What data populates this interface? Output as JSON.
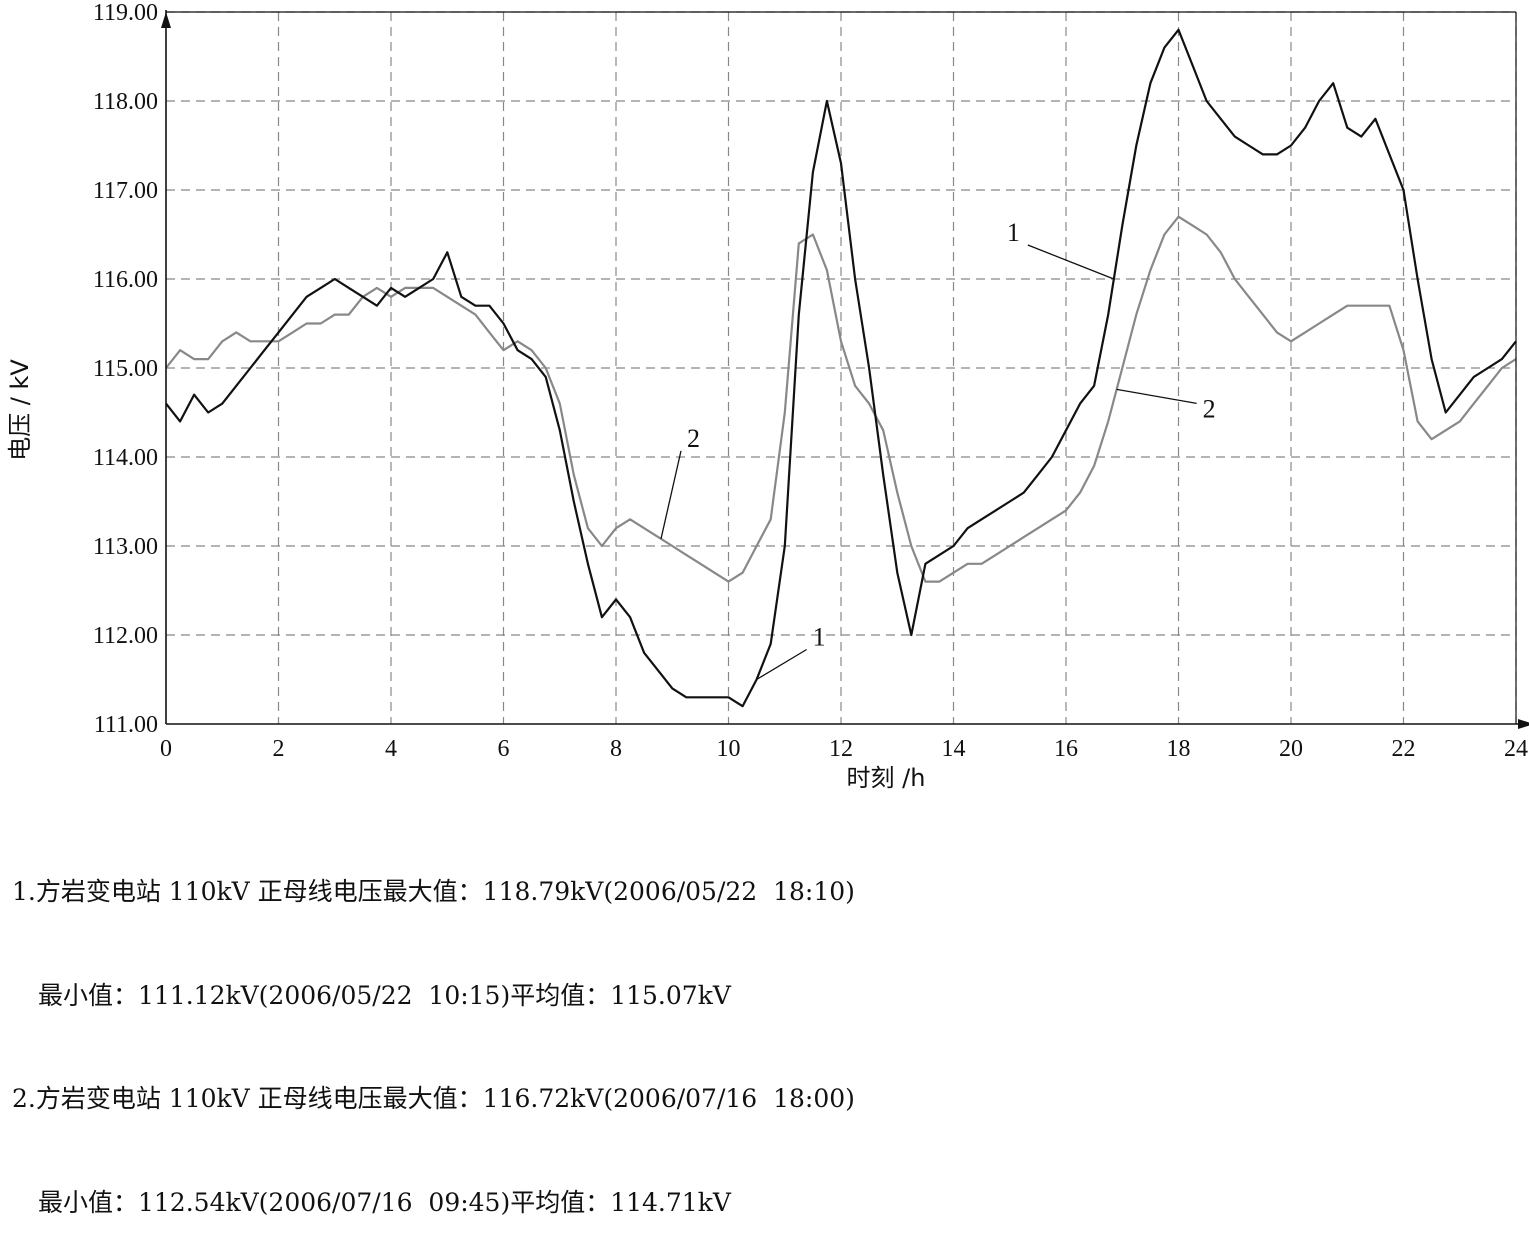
{
  "chart_data": {
    "type": "line",
    "xlabel": "时刻 /h",
    "ylabel": "电压 / kV",
    "xlim": [
      0,
      24
    ],
    "ylim": [
      111,
      119
    ],
    "xticks": [
      "0",
      "2",
      "4",
      "6",
      "8",
      "10",
      "12",
      "14",
      "16",
      "18",
      "20",
      "22",
      "24"
    ],
    "yticks": [
      "111.00",
      "112.00",
      "113.00",
      "114.00",
      "115.00",
      "116.00",
      "117.00",
      "118.00",
      "119.00"
    ],
    "grid": true,
    "series": [
      {
        "name": "1",
        "color": "#111111",
        "x": [
          0,
          0.25,
          0.5,
          0.75,
          1,
          1.25,
          1.5,
          1.75,
          2,
          2.25,
          2.5,
          2.75,
          3,
          3.25,
          3.5,
          3.75,
          4,
          4.25,
          4.5,
          4.75,
          5,
          5.25,
          5.5,
          5.75,
          6,
          6.25,
          6.5,
          6.75,
          7,
          7.25,
          7.5,
          7.75,
          8,
          8.25,
          8.5,
          8.75,
          9,
          9.25,
          9.5,
          9.75,
          10,
          10.25,
          10.5,
          10.75,
          11,
          11.25,
          11.5,
          11.75,
          12,
          12.25,
          12.5,
          12.75,
          13,
          13.25,
          13.5,
          13.75,
          14,
          14.25,
          14.5,
          14.75,
          15,
          15.25,
          15.5,
          15.75,
          16,
          16.25,
          16.5,
          16.75,
          17,
          17.25,
          17.5,
          17.75,
          18,
          18.25,
          18.5,
          18.75,
          19,
          19.25,
          19.5,
          19.75,
          20,
          20.25,
          20.5,
          20.75,
          21,
          21.25,
          21.5,
          21.75,
          22,
          22.25,
          22.5,
          22.75,
          23,
          23.25,
          23.5,
          23.75,
          24
        ],
        "values": [
          114.6,
          114.4,
          114.7,
          114.5,
          114.6,
          114.8,
          115.0,
          115.2,
          115.4,
          115.6,
          115.8,
          115.9,
          116.0,
          115.9,
          115.8,
          115.7,
          115.9,
          115.8,
          115.9,
          116.0,
          116.3,
          115.8,
          115.7,
          115.7,
          115.5,
          115.2,
          115.1,
          114.9,
          114.3,
          113.5,
          112.8,
          112.2,
          112.4,
          112.2,
          111.8,
          111.6,
          111.4,
          111.3,
          111.3,
          111.3,
          111.3,
          111.2,
          111.5,
          111.9,
          113.0,
          115.6,
          117.2,
          118.0,
          117.3,
          116.0,
          115.0,
          113.8,
          112.7,
          112.0,
          112.8,
          112.9,
          113.0,
          113.2,
          113.3,
          113.4,
          113.5,
          113.6,
          113.8,
          114.0,
          114.3,
          114.6,
          114.8,
          115.6,
          116.6,
          117.5,
          118.2,
          118.6,
          118.8,
          118.4,
          118.0,
          117.8,
          117.6,
          117.5,
          117.4,
          117.4,
          117.5,
          117.7,
          118.0,
          118.2,
          117.7,
          117.6,
          117.8,
          117.4,
          117.0,
          116.0,
          115.1,
          114.5,
          114.7,
          114.9,
          115.0,
          115.1,
          115.3
        ],
        "stats": {
          "max": "118.79kV(2006/05/22  18:10)",
          "min": "111.12kV(2006/05/22  10:15)",
          "avg": "115.07kV"
        }
      },
      {
        "name": "2",
        "color": "#888888",
        "x": [
          0,
          0.25,
          0.5,
          0.75,
          1,
          1.25,
          1.5,
          1.75,
          2,
          2.25,
          2.5,
          2.75,
          3,
          3.25,
          3.5,
          3.75,
          4,
          4.25,
          4.5,
          4.75,
          5,
          5.25,
          5.5,
          5.75,
          6,
          6.25,
          6.5,
          6.75,
          7,
          7.25,
          7.5,
          7.75,
          8,
          8.25,
          8.5,
          8.75,
          9,
          9.25,
          9.5,
          9.75,
          10,
          10.25,
          10.5,
          10.75,
          11,
          11.25,
          11.5,
          11.75,
          12,
          12.25,
          12.5,
          12.75,
          13,
          13.25,
          13.5,
          13.75,
          14,
          14.25,
          14.5,
          14.75,
          15,
          15.25,
          15.5,
          15.75,
          16,
          16.25,
          16.5,
          16.75,
          17,
          17.25,
          17.5,
          17.75,
          18,
          18.25,
          18.5,
          18.75,
          19,
          19.25,
          19.5,
          19.75,
          20,
          20.25,
          20.5,
          20.75,
          21,
          21.25,
          21.5,
          21.75,
          22,
          22.25,
          22.5,
          22.75,
          23,
          23.25,
          23.5,
          23.75,
          24
        ],
        "values": [
          115.0,
          115.2,
          115.1,
          115.1,
          115.3,
          115.4,
          115.3,
          115.3,
          115.3,
          115.4,
          115.5,
          115.5,
          115.6,
          115.6,
          115.8,
          115.9,
          115.8,
          115.9,
          115.9,
          115.9,
          115.8,
          115.7,
          115.6,
          115.4,
          115.2,
          115.3,
          115.2,
          115.0,
          114.6,
          113.8,
          113.2,
          113.0,
          113.2,
          113.3,
          113.2,
          113.1,
          113.0,
          112.9,
          112.8,
          112.7,
          112.6,
          112.7,
          113.0,
          113.3,
          114.5,
          116.4,
          116.5,
          116.1,
          115.3,
          114.8,
          114.6,
          114.3,
          113.6,
          113.0,
          112.6,
          112.6,
          112.7,
          112.8,
          112.8,
          112.9,
          113.0,
          113.1,
          113.2,
          113.3,
          113.4,
          113.6,
          113.9,
          114.4,
          115.0,
          115.6,
          116.1,
          116.5,
          116.7,
          116.6,
          116.5,
          116.3,
          116.0,
          115.8,
          115.6,
          115.4,
          115.3,
          115.4,
          115.5,
          115.6,
          115.7,
          115.7,
          115.7,
          115.7,
          115.2,
          114.4,
          114.2,
          114.3,
          114.4,
          114.6,
          114.8,
          115.0,
          115.1
        ]
      }
    ],
    "annotations": [
      {
        "text": "1",
        "series": "1",
        "at_x": 16.85
      },
      {
        "text": "1",
        "series": "1",
        "at_x": 10.5
      },
      {
        "text": "2",
        "series": "2",
        "at_x": 8.8
      },
      {
        "text": "2",
        "series": "2",
        "at_x": 16.9
      }
    ]
  },
  "notes": {
    "line1": "1.方岩变电站 110kV 正母线电压最大值：118.79kV(2006/05/22  18:10)",
    "line2": "最小值：111.12kV(2006/05/22  10:15)平均值：115.07kV",
    "line3": "2.方岩变电站 110kV 正母线电压最大值：116.72kV(2006/07/16  18:00)",
    "line4": "最小值：112.54kV(2006/07/16  09:45)平均值：114.71kV"
  }
}
